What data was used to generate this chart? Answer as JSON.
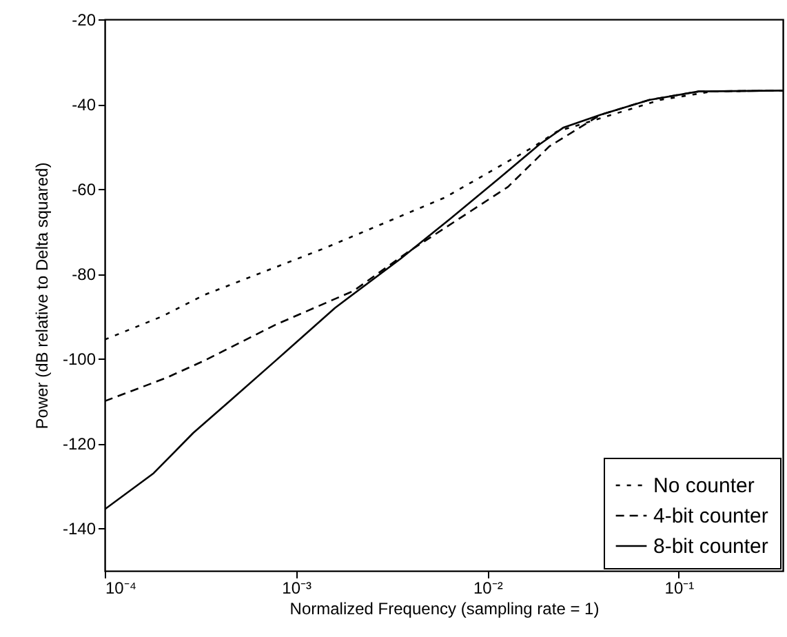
{
  "chart_data": {
    "type": "line",
    "xlabel": "Normalized Frequency (sampling rate = 1)",
    "ylabel": "Power (dB relative to Delta squared)",
    "log": "x",
    "grid": false,
    "legend": "bottom right",
    "marker": "none",
    "xlim": [
      0.0001,
      0.35
    ],
    "xticks": [
      {
        "value": 0.0001,
        "label": "10⁻⁴"
      },
      {
        "value": 0.001,
        "label": "10⁻³"
      },
      {
        "value": 0.01,
        "label": "10⁻²"
      },
      {
        "value": 0.1,
        "label": "10⁻¹"
      }
    ],
    "ylim": [
      -150,
      -20
    ],
    "yticks": [
      -140,
      -120,
      -100,
      -80,
      -60,
      -40,
      -20
    ],
    "series": [
      {
        "name": "No counter",
        "color": "#000000",
        "line_style": "dotted",
        "x": [
          0.0001,
          0.0002,
          0.00033,
          0.0014,
          0.006,
          0.0175,
          0.023,
          0.08,
          0.15,
          0.35
        ],
        "values": [
          -95.5,
          -90,
          -85,
          -74,
          -62,
          -50,
          -46.5,
          -39,
          -37,
          -36.8
        ]
      },
      {
        "name": "4-bit counter",
        "color": "#000000",
        "line_style": "dashed",
        "x": [
          0.0001,
          0.00021,
          0.00033,
          0.00078,
          0.002,
          0.0038,
          0.0128,
          0.021,
          0.039,
          0.07,
          0.127,
          0.35
        ],
        "values": [
          -110,
          -104.5,
          -100.5,
          -92,
          -84,
          -75,
          -59.5,
          -50,
          -42.5,
          -39,
          -37,
          -36.8
        ]
      },
      {
        "name": "8-bit counter",
        "color": "#000000",
        "line_style": "solid",
        "x": [
          0.0001,
          0.00018,
          0.00029,
          0.00045,
          0.00078,
          0.0016,
          0.0035,
          0.0064,
          0.0115,
          0.0187,
          0.025,
          0.039,
          0.07,
          0.127,
          0.35
        ],
        "values": [
          -135.5,
          -127,
          -117.5,
          -110,
          -100.5,
          -88,
          -76.5,
          -67,
          -57.5,
          -49.5,
          -45.5,
          -42.5,
          -39,
          -37,
          -36.8
        ]
      }
    ]
  }
}
